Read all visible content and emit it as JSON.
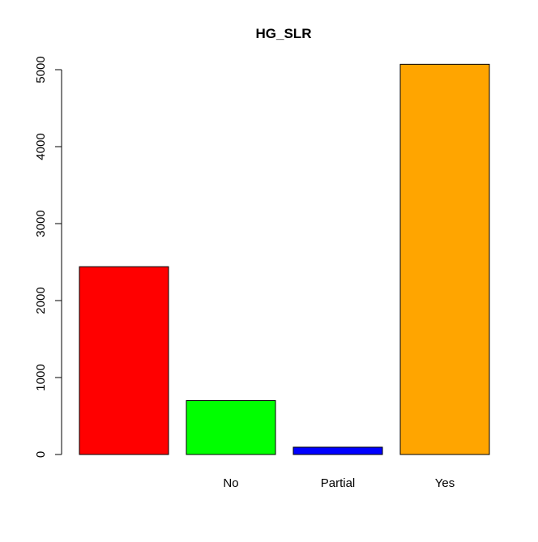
{
  "chart_data": {
    "type": "bar",
    "title": "HG_SLR",
    "xlabel": "",
    "ylabel": "",
    "categories": [
      "",
      "No",
      "Partial",
      "Yes"
    ],
    "values": [
      2440,
      700,
      95,
      5070
    ],
    "colors": [
      "#ff0000",
      "#00ff00",
      "#0000ff",
      "#ffa500"
    ],
    "ylim": [
      0,
      5000
    ],
    "yticks": [
      0,
      1000,
      2000,
      3000,
      4000,
      5000
    ],
    "grid": false,
    "legend": "none"
  }
}
